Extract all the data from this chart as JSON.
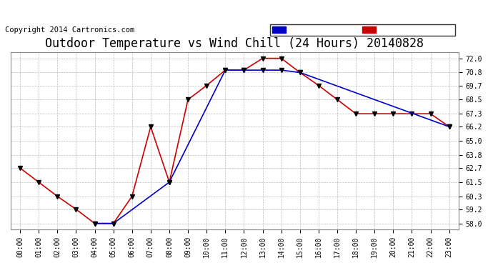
{
  "title": "Outdoor Temperature vs Wind Chill (24 Hours) 20140828",
  "copyright": "Copyright 2014 Cartronics.com",
  "hours": [
    "00:00",
    "01:00",
    "02:00",
    "03:00",
    "04:00",
    "05:00",
    "06:00",
    "07:00",
    "08:00",
    "09:00",
    "10:00",
    "11:00",
    "12:00",
    "13:00",
    "14:00",
    "15:00",
    "16:00",
    "17:00",
    "18:00",
    "19:00",
    "20:00",
    "21:00",
    "22:00",
    "23:00"
  ],
  "temperature": [
    62.7,
    61.5,
    60.3,
    59.2,
    58.0,
    58.0,
    60.3,
    66.2,
    61.5,
    68.5,
    69.7,
    71.0,
    71.0,
    72.0,
    72.0,
    70.8,
    69.7,
    68.5,
    67.3,
    67.3,
    67.3,
    67.3,
    67.3,
    66.2
  ],
  "wind_chill_x": [
    4,
    5,
    8,
    11,
    12,
    13,
    14,
    15,
    23
  ],
  "wind_chill_y": [
    58.0,
    58.0,
    61.5,
    71.0,
    71.0,
    71.0,
    71.0,
    70.8,
    66.2
  ],
  "ylim": [
    57.5,
    72.5
  ],
  "yticks": [
    58.0,
    59.2,
    60.3,
    61.5,
    62.7,
    63.8,
    65.0,
    66.2,
    67.3,
    68.5,
    69.7,
    70.8,
    72.0
  ],
  "temp_color": "#cc0000",
  "wind_color": "#0000cc",
  "bg_color": "#ffffff",
  "plot_bg": "#ffffff",
  "grid_color": "#aaaaaa",
  "legend_wind_bg": "#0000cc",
  "legend_temp_bg": "#cc0000",
  "title_fontsize": 12,
  "copyright_fontsize": 7.5
}
